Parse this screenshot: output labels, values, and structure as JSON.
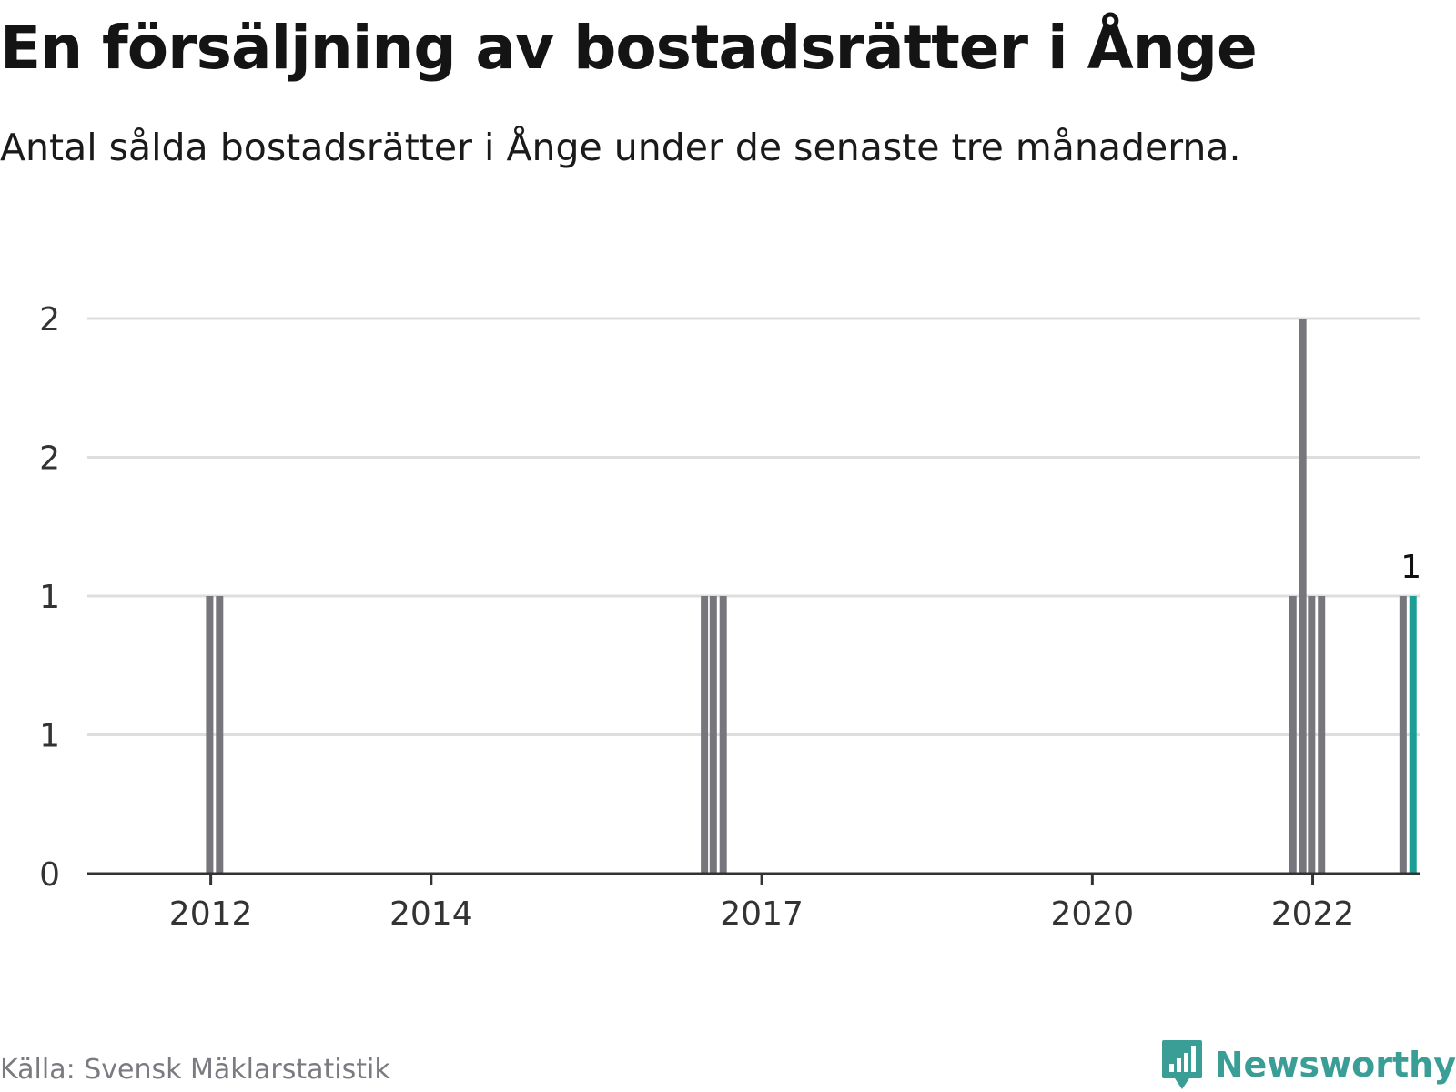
{
  "title": "En försäljning av bostadsrätter i Ånge",
  "subtitle": "Antal sålda bostadsrätter i Ånge under de senaste tre månaderna.",
  "source": "Källa: Svensk Mäklarstatistik",
  "brand": {
    "name": "Newsworthy",
    "logo_icon": "bar-chart-speech-bubble-icon"
  },
  "colors": {
    "bar": "#76767c",
    "highlight": "#1a9e96",
    "grid": "#dedede",
    "axis": "#333333"
  },
  "chart_data": {
    "type": "bar",
    "title": "En försäljning av bostadsrätter i Ånge",
    "xlabel": "",
    "ylabel": "",
    "ylim": [
      0,
      2
    ],
    "grid": true,
    "y_ticks": [
      {
        "value": 0,
        "label": "0"
      },
      {
        "value": 0.5,
        "label": "1"
      },
      {
        "value": 1,
        "label": "1"
      },
      {
        "value": 1.5,
        "label": "2"
      },
      {
        "value": 2,
        "label": "2"
      }
    ],
    "x_ticks": [
      {
        "value": 2012,
        "label": "2012"
      },
      {
        "value": 2014,
        "label": "2014"
      },
      {
        "value": 2017,
        "label": "2017"
      },
      {
        "value": 2020,
        "label": "2020"
      },
      {
        "value": 2022,
        "label": "2022"
      }
    ],
    "bars": [
      {
        "x": 2011.99,
        "value": 1
      },
      {
        "x": 2012.08,
        "value": 1
      },
      {
        "x": 2016.48,
        "value": 1
      },
      {
        "x": 2016.56,
        "value": 1
      },
      {
        "x": 2016.65,
        "value": 1
      },
      {
        "x": 2021.82,
        "value": 1
      },
      {
        "x": 2021.91,
        "value": 2
      },
      {
        "x": 2021.99,
        "value": 1
      },
      {
        "x": 2022.08,
        "value": 1
      },
      {
        "x": 2022.82,
        "value": 1
      },
      {
        "x": 2022.91,
        "value": 1,
        "highlight": true,
        "label": "1"
      }
    ]
  }
}
